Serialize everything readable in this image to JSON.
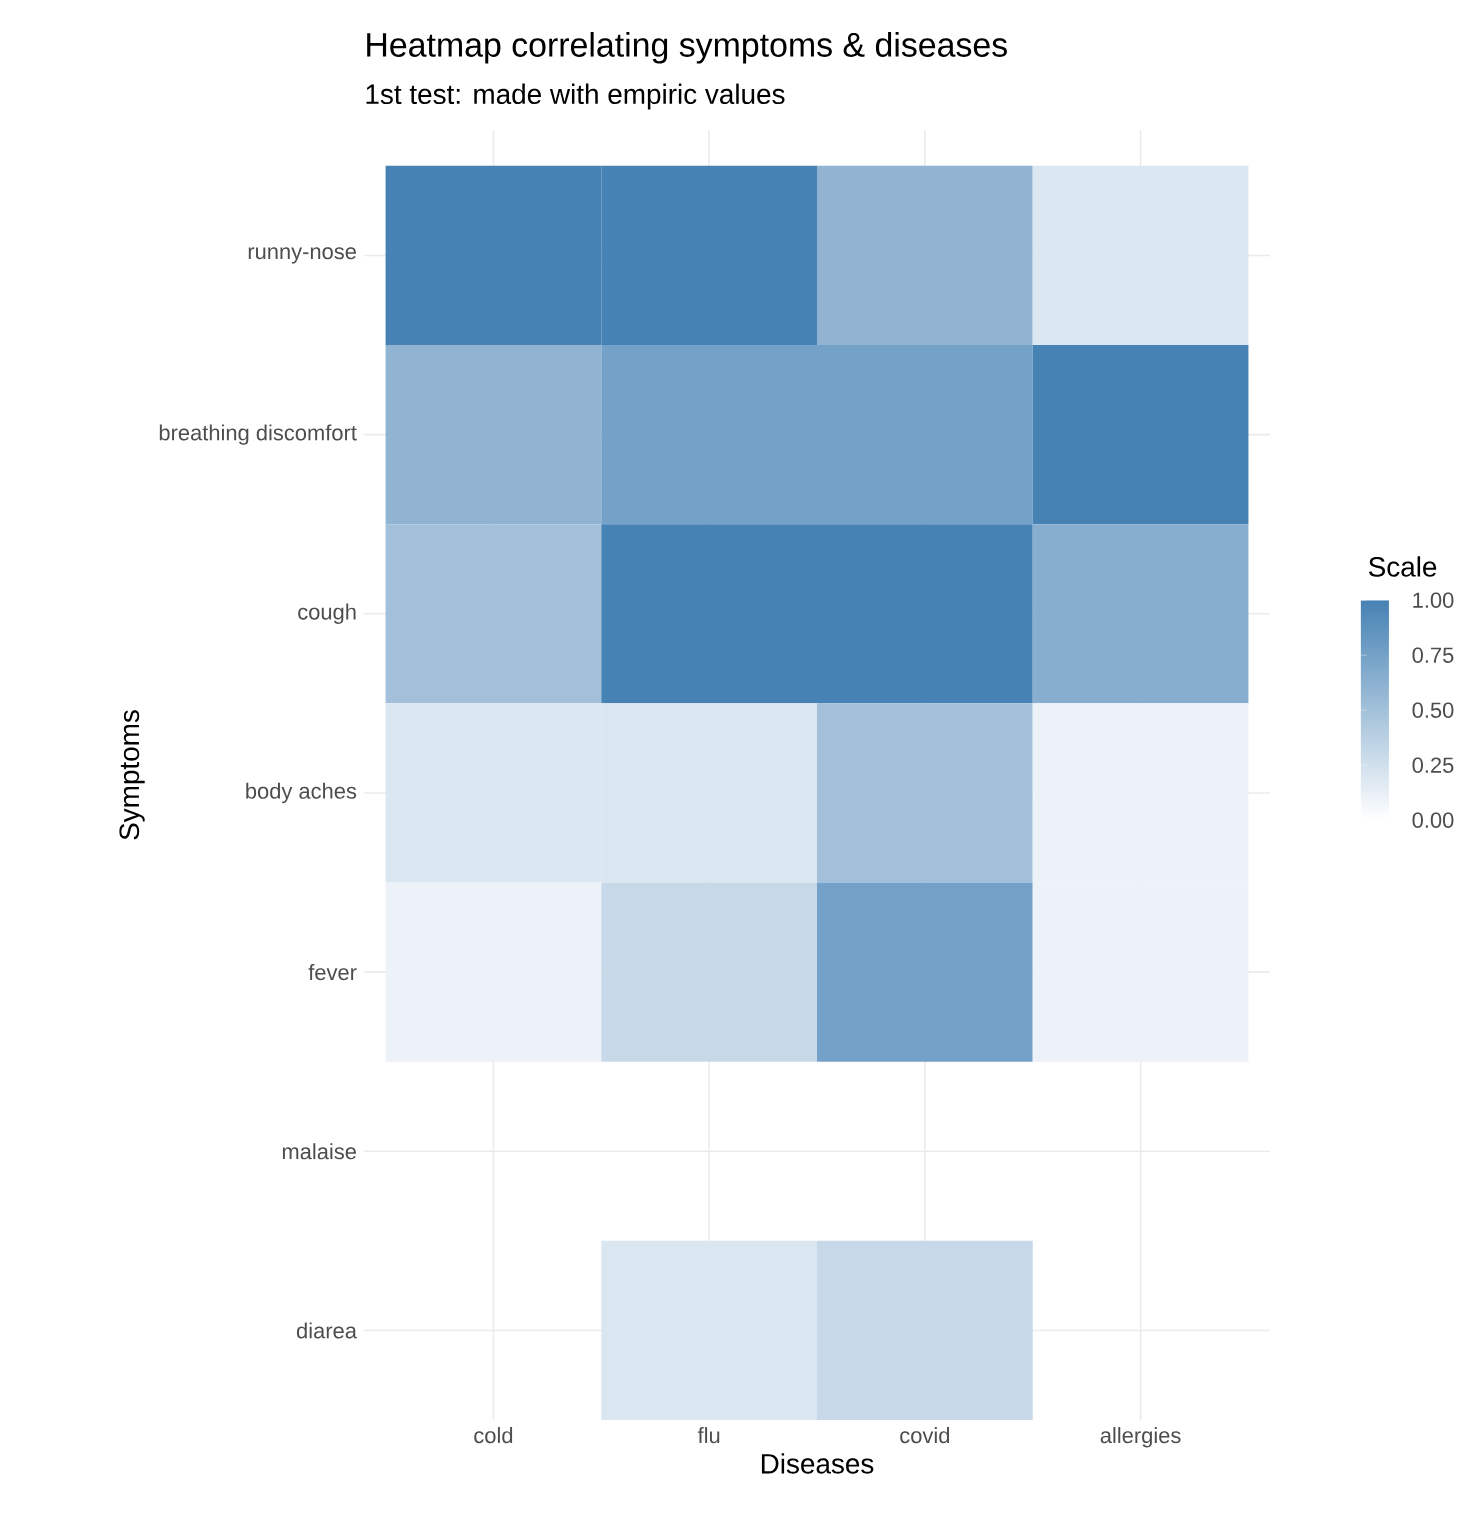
{
  "chart_data": {
    "type": "heatmap",
    "title": "Heatmap correlating symptoms & diseases",
    "subtitle": "1st test: made with empiric values",
    "xlabel": "Diseases",
    "ylabel": "Symptoms",
    "clabel": "Scale",
    "categories": [
      "cold",
      "flu",
      "covid",
      "allergies"
    ],
    "y_categories": [
      "runny-nose",
      "breathing discomfort",
      "cough",
      "body aches",
      "fever",
      "malaise",
      "diarea"
    ],
    "cells": [
      [
        1.0,
        1.0,
        0.6,
        0.2
      ],
      [
        0.6,
        0.75,
        0.75,
        1.0
      ],
      [
        0.5,
        1.0,
        1.0,
        0.65
      ],
      [
        0.2,
        0.2,
        0.5,
        0.1
      ],
      [
        0.1,
        0.3,
        0.75,
        0.1
      ],
      [
        null,
        null,
        null,
        null
      ],
      [
        null,
        0.2,
        0.3,
        null
      ]
    ],
    "clim": [
      0,
      1
    ],
    "cticks": [
      {
        "value": 0,
        "label": "0.00"
      },
      {
        "value": 0.25,
        "label": "0.25"
      },
      {
        "value": 0.5,
        "label": "0.50"
      },
      {
        "value": 0.75,
        "label": "0.75"
      },
      {
        "value": 1,
        "label": "1.00"
      }
    ],
    "grid": true
  }
}
